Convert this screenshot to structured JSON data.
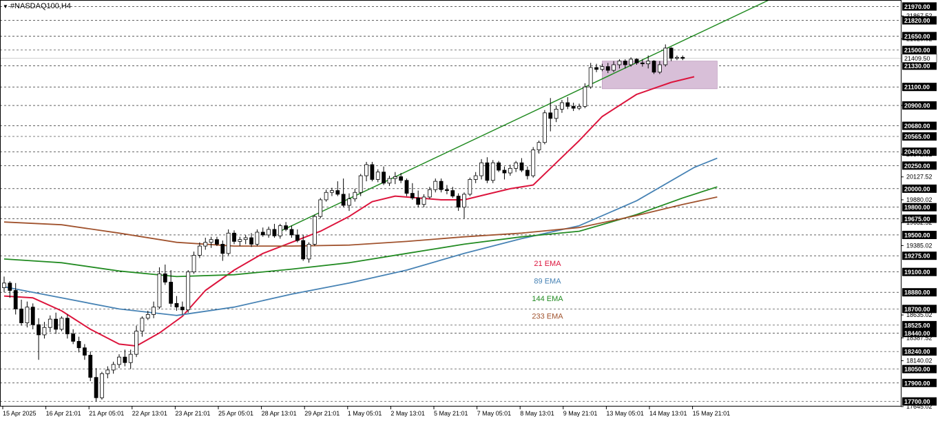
{
  "symbol": "#NASDAQ100,H4",
  "colors": {
    "background": "#ffffff",
    "grid": "#000000",
    "bull": "#ffffff",
    "bear": "#000000",
    "ema21": "#dc143c",
    "ema89": "#4682b4",
    "ema144": "#228b22",
    "ema233": "#a0522d",
    "channel": "#228b22",
    "zone": "#d8bfd8",
    "badge": "#000000"
  },
  "chart_data": {
    "type": "candlestick",
    "ylim": [
      17645.0,
      22040.0
    ],
    "grid": true,
    "badge_levels": [
      "21970.00",
      "21820.00",
      "21650.00",
      "21500.00",
      "21330.00",
      "21100.00",
      "20900.00",
      "20680.00",
      "20565.00",
      "20400.00",
      "20250.00",
      "20000.00",
      "19800.00",
      "19675.00",
      "19500.00",
      "19275.00",
      "19100.00",
      "18880.00",
      "18700.00",
      "18525.00",
      "18440.00",
      "18240.00",
      "18050.00",
      "17900.00",
      "17700.00"
    ],
    "plain_levels": [
      "21867.52",
      "21620.02",
      "20900.00",
      "20372.52",
      "20127.52",
      "19880.02",
      "19632.52",
      "19385.02",
      "18635.02",
      "18387.52",
      "18140.02",
      "17645.02"
    ],
    "current_price": "21409.50",
    "x_labels": [
      "15 Apr 2025",
      "16 Apr 21:01",
      "21 Apr 05:01",
      "22 Apr 13:01",
      "23 Apr 21:01",
      "25 Apr 05:01",
      "28 Apr 13:01",
      "29 Apr 21:01",
      "1 May 05:01",
      "2 May 13:01",
      "5 May 21:01",
      "7 May 05:01",
      "8 May 13:01",
      "9 May 21:01",
      "13 May 05:01",
      "14 May 13:01",
      "15 May 21:01"
    ],
    "candles": [
      [
        18930,
        19050,
        18880,
        18980
      ],
      [
        18980,
        19000,
        18820,
        18900
      ],
      [
        18900,
        18980,
        18640,
        18700
      ],
      [
        18700,
        18800,
        18520,
        18550
      ],
      [
        18550,
        18780,
        18500,
        18720
      ],
      [
        18720,
        18760,
        18480,
        18530
      ],
      [
        18530,
        18600,
        18150,
        18420
      ],
      [
        18420,
        18560,
        18380,
        18500
      ],
      [
        18500,
        18630,
        18450,
        18590
      ],
      [
        18590,
        18660,
        18430,
        18480
      ],
      [
        18480,
        18620,
        18460,
        18600
      ],
      [
        18600,
        18640,
        18380,
        18430
      ],
      [
        18430,
        18480,
        18320,
        18350
      ],
      [
        18350,
        18400,
        18230,
        18280
      ],
      [
        18280,
        18320,
        18150,
        18200
      ],
      [
        18200,
        18240,
        17920,
        17960
      ],
      [
        17960,
        18060,
        17700,
        17740
      ],
      [
        17740,
        18020,
        17720,
        18000
      ],
      [
        18000,
        18080,
        17950,
        18040
      ],
      [
        18040,
        18130,
        18000,
        18100
      ],
      [
        18100,
        18210,
        18060,
        18180
      ],
      [
        18180,
        18260,
        18080,
        18120
      ],
      [
        18120,
        18260,
        18050,
        18210
      ],
      [
        18210,
        18520,
        18180,
        18460
      ],
      [
        18460,
        18620,
        18400,
        18600
      ],
      [
        18600,
        18680,
        18580,
        18640
      ],
      [
        18640,
        18780,
        18600,
        18720
      ],
      [
        18720,
        19150,
        18700,
        19080
      ],
      [
        19080,
        19180,
        18960,
        18990
      ],
      [
        18990,
        19120,
        18720,
        18760
      ],
      [
        18760,
        18840,
        18680,
        18720
      ],
      [
        18720,
        18780,
        18640,
        18690
      ],
      [
        18690,
        19120,
        18660,
        19100
      ],
      [
        19100,
        19320,
        19080,
        19280
      ],
      [
        19280,
        19420,
        19250,
        19380
      ],
      [
        19380,
        19470,
        19340,
        19420
      ],
      [
        19420,
        19480,
        19360,
        19450
      ],
      [
        19450,
        19480,
        19380,
        19400
      ],
      [
        19400,
        19440,
        19220,
        19300
      ],
      [
        19300,
        19560,
        19280,
        19520
      ],
      [
        19520,
        19550,
        19400,
        19430
      ],
      [
        19430,
        19480,
        19380,
        19450
      ],
      [
        19450,
        19500,
        19400,
        19470
      ],
      [
        19470,
        19520,
        19370,
        19400
      ],
      [
        19400,
        19560,
        19380,
        19530
      ],
      [
        19530,
        19580,
        19480,
        19500
      ],
      [
        19500,
        19590,
        19470,
        19560
      ],
      [
        19560,
        19620,
        19470,
        19490
      ],
      [
        19490,
        19620,
        19460,
        19600
      ],
      [
        19600,
        19640,
        19540,
        19560
      ],
      [
        19560,
        19600,
        19470,
        19500
      ],
      [
        19500,
        19560,
        19420,
        19440
      ],
      [
        19440,
        19500,
        19220,
        19240
      ],
      [
        19240,
        19420,
        19200,
        19400
      ],
      [
        19400,
        19720,
        19380,
        19700
      ],
      [
        19700,
        19900,
        19680,
        19880
      ],
      [
        19880,
        19990,
        19860,
        19960
      ],
      [
        19960,
        20010,
        19920,
        19980
      ],
      [
        19980,
        20080,
        19920,
        19940
      ],
      [
        19940,
        20110,
        19800,
        19820
      ],
      [
        19820,
        19950,
        19760,
        19890
      ],
      [
        19890,
        20000,
        19860,
        19960
      ],
      [
        19960,
        20160,
        19920,
        20140
      ],
      [
        20140,
        20290,
        20080,
        20260
      ],
      [
        20260,
        20290,
        20080,
        20100
      ],
      [
        20100,
        20210,
        20070,
        20180
      ],
      [
        20180,
        20240,
        20040,
        20060
      ],
      [
        20060,
        20140,
        20030,
        20110
      ],
      [
        20110,
        20180,
        20050,
        20130
      ],
      [
        20130,
        20170,
        20060,
        20090
      ],
      [
        20090,
        20110,
        19920,
        19950
      ],
      [
        19950,
        20060,
        19880,
        19900
      ],
      [
        19900,
        19980,
        19800,
        19830
      ],
      [
        19830,
        19940,
        19800,
        19910
      ],
      [
        19910,
        20020,
        19890,
        19990
      ],
      [
        19990,
        20110,
        19960,
        20080
      ],
      [
        20080,
        20110,
        19960,
        19990
      ],
      [
        19990,
        20040,
        19940,
        19980
      ],
      [
        19980,
        20020,
        19900,
        19920
      ],
      [
        19920,
        19950,
        19760,
        19800
      ],
      [
        19800,
        19960,
        19680,
        19940
      ],
      [
        19940,
        20120,
        19920,
        20100
      ],
      [
        20100,
        20180,
        20060,
        20140
      ],
      [
        20140,
        20320,
        20100,
        20280
      ],
      [
        20280,
        20340,
        20060,
        20090
      ],
      [
        20090,
        20310,
        20060,
        20280
      ],
      [
        20280,
        20300,
        20180,
        20200
      ],
      [
        20200,
        20240,
        20100,
        20170
      ],
      [
        20170,
        20260,
        20140,
        20220
      ],
      [
        20220,
        20300,
        20180,
        20280
      ],
      [
        20280,
        20330,
        20180,
        20200
      ],
      [
        20200,
        20240,
        20100,
        20140
      ],
      [
        20140,
        20450,
        20120,
        20420
      ],
      [
        20420,
        20520,
        20380,
        20500
      ],
      [
        20500,
        20850,
        20480,
        20820
      ],
      [
        20820,
        20980,
        20620,
        20760
      ],
      [
        20760,
        20900,
        20720,
        20860
      ],
      [
        20860,
        20960,
        20820,
        20930
      ],
      [
        20930,
        20990,
        20860,
        20890
      ],
      [
        20890,
        20930,
        20840,
        20870
      ],
      [
        20870,
        20920,
        20850,
        20890
      ],
      [
        20890,
        21140,
        20870,
        21100
      ],
      [
        21100,
        21360,
        21080,
        21310
      ],
      [
        21310,
        21350,
        21260,
        21290
      ],
      [
        21290,
        21350,
        21270,
        21320
      ],
      [
        21320,
        21360,
        21250,
        21280
      ],
      [
        21280,
        21380,
        21260,
        21340
      ],
      [
        21340,
        21400,
        21300,
        21380
      ],
      [
        21380,
        21400,
        21300,
        21340
      ],
      [
        21340,
        21420,
        21320,
        21400
      ],
      [
        21400,
        21410,
        21340,
        21360
      ],
      [
        21360,
        21400,
        21320,
        21350
      ],
      [
        21350,
        21440,
        21300,
        21380
      ],
      [
        21380,
        21390,
        21240,
        21260
      ],
      [
        21260,
        21380,
        21240,
        21340
      ],
      [
        21340,
        21560,
        21320,
        21520
      ],
      [
        21520,
        21530,
        21380,
        21410
      ],
      [
        21410,
        21440,
        21390,
        21420
      ],
      [
        21420,
        21440,
        21390,
        21409
      ]
    ],
    "channel_line": {
      "from": [
        48,
        19540
      ],
      "to": [
        133,
        22040
      ]
    },
    "channel_base": {
      "from": [
        48,
        19540
      ],
      "to": [
        48,
        19600
      ]
    },
    "zone": {
      "from_index": 104,
      "to_index": 124,
      "top": 21380,
      "bottom": 21080
    },
    "series": [
      {
        "name": "21 EMA",
        "values": [
          [
            0,
            18840
          ],
          [
            5,
            18820
          ],
          [
            10,
            18680
          ],
          [
            15,
            18480
          ],
          [
            20,
            18320
          ],
          [
            23,
            18300
          ],
          [
            27,
            18440
          ],
          [
            31,
            18620
          ],
          [
            35,
            18900
          ],
          [
            40,
            19120
          ],
          [
            45,
            19300
          ],
          [
            50,
            19420
          ],
          [
            55,
            19540
          ],
          [
            60,
            19700
          ],
          [
            64,
            19860
          ],
          [
            68,
            19920
          ],
          [
            72,
            19900
          ],
          [
            76,
            19880
          ],
          [
            80,
            19880
          ],
          [
            84,
            19940
          ],
          [
            88,
            20000
          ],
          [
            92,
            20040
          ],
          [
            96,
            20280
          ],
          [
            100,
            20520
          ],
          [
            104,
            20780
          ],
          [
            110,
            21020
          ],
          [
            116,
            21150
          ],
          [
            120,
            21210
          ]
        ]
      },
      {
        "name": "89 EMA",
        "values": [
          [
            0,
            18940
          ],
          [
            10,
            18820
          ],
          [
            20,
            18700
          ],
          [
            30,
            18630
          ],
          [
            40,
            18720
          ],
          [
            50,
            18860
          ],
          [
            60,
            18980
          ],
          [
            70,
            19120
          ],
          [
            80,
            19300
          ],
          [
            90,
            19460
          ],
          [
            100,
            19600
          ],
          [
            110,
            19870
          ],
          [
            120,
            20230
          ],
          [
            124,
            20330
          ]
        ]
      },
      {
        "name": "144 EMA",
        "values": [
          [
            0,
            19240
          ],
          [
            10,
            19200
          ],
          [
            20,
            19110
          ],
          [
            30,
            19050
          ],
          [
            40,
            19070
          ],
          [
            50,
            19130
          ],
          [
            60,
            19200
          ],
          [
            70,
            19300
          ],
          [
            80,
            19400
          ],
          [
            90,
            19480
          ],
          [
            100,
            19540
          ],
          [
            110,
            19720
          ],
          [
            118,
            19900
          ],
          [
            124,
            20020
          ]
        ]
      },
      {
        "name": "233 EMA",
        "values": [
          [
            0,
            19640
          ],
          [
            10,
            19610
          ],
          [
            20,
            19520
          ],
          [
            30,
            19420
          ],
          [
            40,
            19380
          ],
          [
            50,
            19380
          ],
          [
            60,
            19390
          ],
          [
            70,
            19430
          ],
          [
            80,
            19480
          ],
          [
            90,
            19520
          ],
          [
            100,
            19580
          ],
          [
            110,
            19710
          ],
          [
            118,
            19830
          ],
          [
            124,
            19910
          ]
        ]
      }
    ],
    "legend": [
      {
        "name": "21 EMA",
        "color": "#dc143c"
      },
      {
        "name": "89 EMA",
        "color": "#4682b4"
      },
      {
        "name": "144 EMA",
        "color": "#228b22"
      },
      {
        "name": "233 EMA",
        "color": "#a0522d"
      }
    ]
  }
}
